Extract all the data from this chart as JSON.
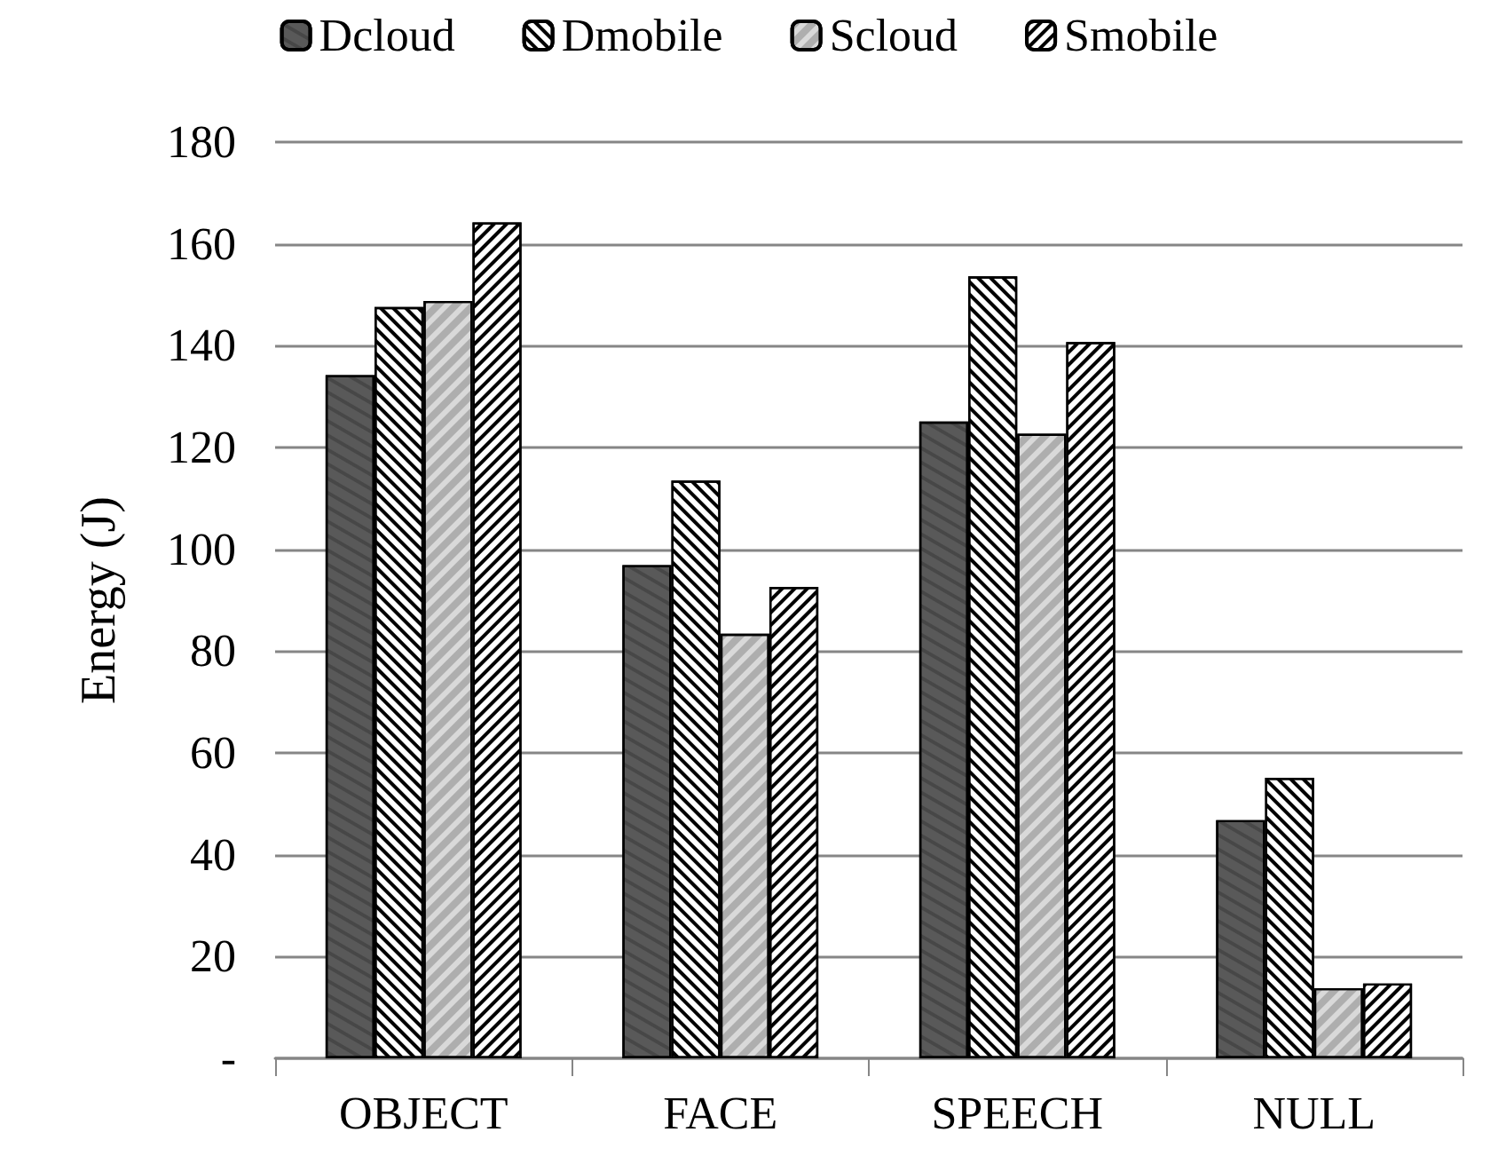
{
  "chart_data": {
    "type": "bar",
    "ylabel": "Energy (J)",
    "categories": [
      "OBJECT",
      "FACE",
      "SPEECH",
      "NULL"
    ],
    "series": [
      {
        "name": "Dcloud",
        "color": "#595959",
        "values": [
          134.2,
          96.9,
          125.1,
          46.8
        ]
      },
      {
        "name": "Dmobile",
        "color": "#ffffff",
        "values": [
          147.6,
          113.5,
          153.6,
          55.1
        ]
      },
      {
        "name": "Scloud",
        "color": "#d9d9d9",
        "values": [
          148.8,
          83.4,
          122.7,
          13.8
        ]
      },
      {
        "name": "Smobile",
        "color": "#ffffff",
        "values": [
          164.2,
          92.6,
          140.7,
          14.7
        ]
      }
    ],
    "ylim": [
      0,
      180
    ],
    "yticks": [
      {
        "value": 0,
        "label": "-"
      },
      20,
      40,
      60,
      80,
      100,
      120,
      140,
      160,
      180
    ],
    "grid": "y",
    "legend": "top"
  }
}
